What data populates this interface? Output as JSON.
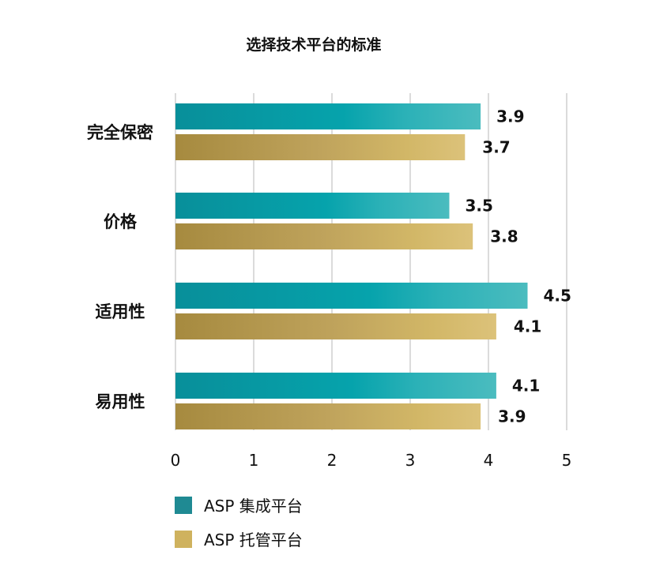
{
  "chart_data": {
    "type": "bar",
    "orientation": "horizontal",
    "title": "选择技术平台的标准",
    "categories": [
      "完全保密",
      "价格",
      "适用性",
      "易用性"
    ],
    "series": [
      {
        "name": "ASP 集成平台",
        "values": [
          3.9,
          3.5,
          4.5,
          4.1
        ],
        "color": "#1f8a93"
      },
      {
        "name": "ASP 托管平台",
        "values": [
          3.7,
          3.8,
          4.1,
          3.9
        ],
        "color": "#cfb25e"
      }
    ],
    "value_labels": {
      "series0": [
        "3.9",
        "3.5",
        "4.5",
        "4.1"
      ],
      "series1": [
        "3.7",
        "3.8",
        "4.1",
        "3.9"
      ]
    },
    "xlim": [
      0,
      5
    ],
    "xticks": [
      "0",
      "1",
      "2",
      "3",
      "4",
      "5"
    ],
    "grid": true,
    "legend_position": "bottom-left"
  }
}
